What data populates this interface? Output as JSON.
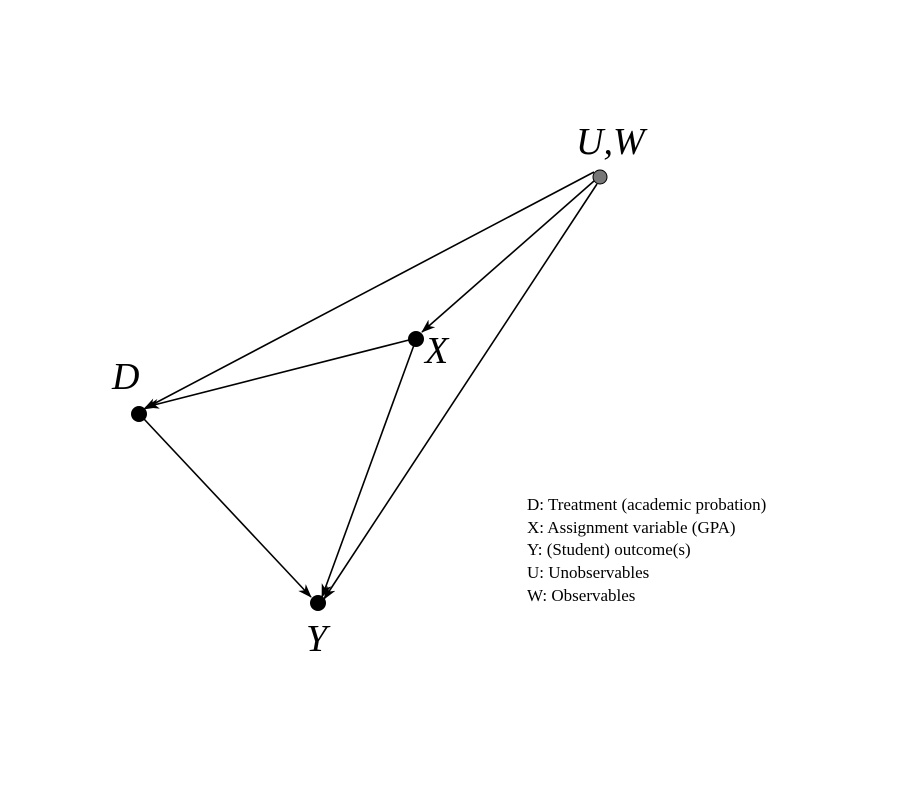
{
  "nodes": {
    "uw": {
      "label": "U,W",
      "color": "#777777"
    },
    "x": {
      "label": "X",
      "color": "#000000"
    },
    "d": {
      "label": "D",
      "color": "#000000"
    },
    "y": {
      "label": "Y",
      "color": "#000000"
    }
  },
  "edges": [
    {
      "from": "U,W",
      "to": "D"
    },
    {
      "from": "U,W",
      "to": "X"
    },
    {
      "from": "U,W",
      "to": "Y"
    },
    {
      "from": "X",
      "to": "D"
    },
    {
      "from": "X",
      "to": "Y"
    },
    {
      "from": "D",
      "to": "Y"
    }
  ],
  "legend": [
    "D: Treatment (academic probation)",
    "X: Assignment variable (GPA)",
    "Y: (Student) outcome(s)",
    "U: Unobservables",
    "W: Observables"
  ]
}
